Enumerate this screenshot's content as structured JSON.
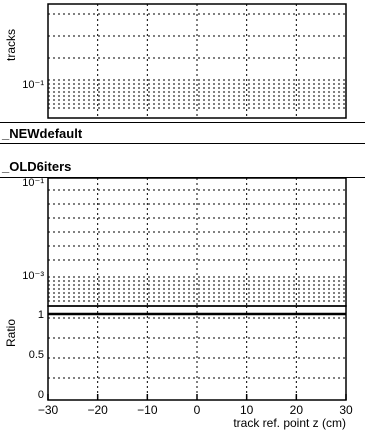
{
  "chart_data": {
    "type": "line",
    "panels": [
      {
        "id": "top",
        "ylabel": "tracks",
        "ytick_labels": [
          {
            "value": 0.1,
            "label": "10⁻¹"
          }
        ],
        "log_y": true,
        "grid": true
      },
      {
        "id": "middle",
        "ylabel": "",
        "ytick_labels": [
          {
            "value": 0.1,
            "label": "10⁻¹"
          },
          {
            "value": 0.001,
            "label": "10⁻³"
          }
        ],
        "log_y": true,
        "grid": true
      },
      {
        "id": "ratio",
        "ylabel": "Ratio",
        "ylim": [
          0,
          1.2
        ],
        "ytick_labels": [
          {
            "value": 0,
            "label": "0"
          },
          {
            "value": 0.5,
            "label": "0.5"
          },
          {
            "value": 1,
            "label": "1"
          }
        ],
        "reference_line": 1,
        "grid": true
      }
    ],
    "x": {
      "label": "track ref. point z (cm)",
      "xlim": [
        -30,
        30
      ],
      "ticks": [
        -30,
        -20,
        -10,
        0,
        10,
        20,
        30
      ],
      "tick_labels": [
        "−30",
        "−20",
        "−10",
        "0",
        "10",
        "20",
        "30"
      ]
    },
    "legend": [
      {
        "label": "_NEWdefault"
      },
      {
        "label": "_OLD6iters"
      }
    ]
  },
  "colors": {
    "axes": "#000000",
    "grid": "#000000",
    "background": "#ffffff"
  }
}
